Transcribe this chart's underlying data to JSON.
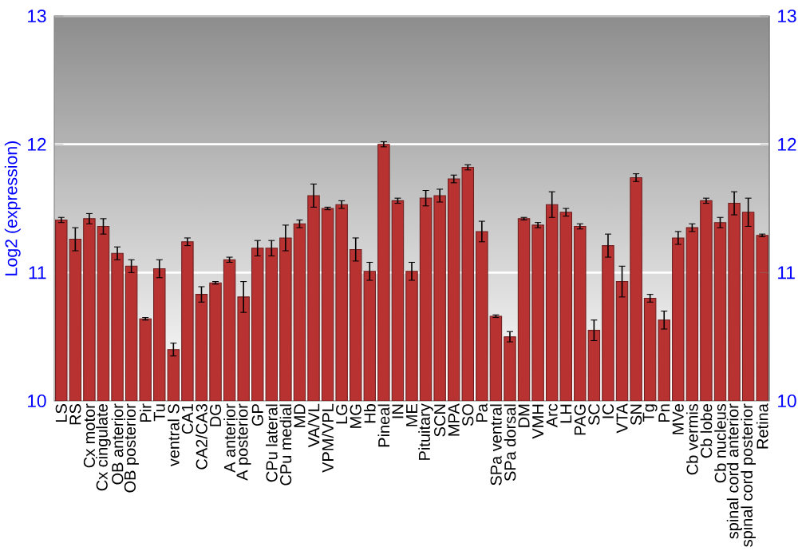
{
  "chart_data": {
    "type": "bar",
    "ylabel": "Log2 (expression)",
    "categories": [
      "LS",
      "RS",
      "Cx motor",
      "Cx cingulate",
      "OB anterior",
      "OB posterior",
      "Pir",
      "Tu",
      "ventral S",
      "CA1",
      "CA2/CA3",
      "DG",
      "A anterior",
      "A posterior",
      "GP",
      "CPu lateral",
      "CPu medial",
      "MD",
      "VA/VL",
      "VPM/VPL",
      "LG",
      "MG",
      "Hb",
      "Pineal",
      "IN",
      "ME",
      "Pituitary",
      "SCN",
      "MPA",
      "SO",
      "Pa",
      "SPa ventral",
      "SPa dorsal",
      "DM",
      "VMH",
      "Arc",
      "LH",
      "PAG",
      "SC",
      "IC",
      "VTA",
      "SN",
      "Tg",
      "Pn",
      "MVe",
      "Cb vermis",
      "Cb lobe",
      "Cb nucleus",
      "spinal cord anterior",
      "spinal cord posterior",
      "Retina"
    ],
    "values": [
      11.41,
      11.26,
      11.42,
      11.36,
      11.15,
      11.05,
      10.64,
      11.03,
      10.4,
      11.24,
      10.83,
      10.92,
      11.1,
      10.81,
      11.19,
      11.19,
      11.27,
      11.38,
      11.6,
      11.5,
      11.53,
      11.18,
      11.01,
      12.0,
      11.56,
      11.01,
      11.58,
      11.6,
      11.73,
      11.82,
      11.32,
      10.66,
      10.5,
      11.42,
      11.37,
      11.53,
      11.47,
      11.36,
      10.55,
      11.21,
      10.93,
      11.74,
      10.8,
      10.63,
      11.27,
      11.35,
      11.56,
      11.39,
      11.54,
      11.47,
      11.29
    ],
    "errors": [
      0.02,
      0.09,
      0.04,
      0.06,
      0.05,
      0.05,
      0.01,
      0.07,
      0.05,
      0.03,
      0.06,
      0.01,
      0.02,
      0.12,
      0.06,
      0.06,
      0.1,
      0.03,
      0.09,
      0.01,
      0.03,
      0.09,
      0.07,
      0.02,
      0.02,
      0.07,
      0.06,
      0.05,
      0.03,
      0.02,
      0.08,
      0.01,
      0.04,
      0.01,
      0.02,
      0.1,
      0.03,
      0.02,
      0.08,
      0.09,
      0.12,
      0.03,
      0.03,
      0.07,
      0.05,
      0.03,
      0.02,
      0.04,
      0.09,
      0.11,
      0.01
    ],
    "color": "#b83232",
    "ylim": [
      10,
      13
    ],
    "yticks": [
      10,
      11,
      12,
      13
    ],
    "y2lim": [
      10,
      13
    ],
    "y2ticks": [
      10,
      11,
      12,
      13
    ],
    "grid": "y"
  }
}
